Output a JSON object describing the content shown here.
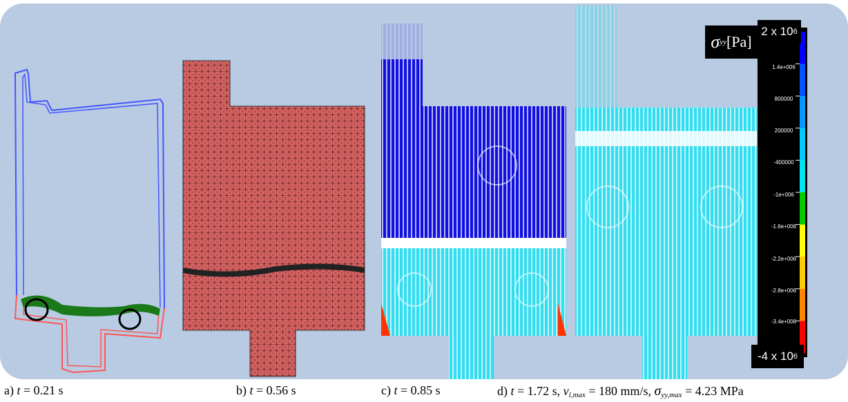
{
  "captions": {
    "a": {
      "prefix": "a) ",
      "var": "t",
      "rest": " = 0.21 s"
    },
    "b": {
      "prefix": "b) ",
      "var": "t",
      "rest": " = 0.56 s"
    },
    "c": {
      "prefix": "c) ",
      "var": "t",
      "rest": " = 0.85 s"
    },
    "d": {
      "prefix": "d) ",
      "var": "t",
      "t_rest": " = 1.72 s, ",
      "v": "v",
      "v_sub": "l,max",
      "v_rest": " = 180 mm/s, ",
      "sigma": "σ",
      "sigma_sub": "yy,max",
      "sigma_rest": " = 4.23 MPa"
    }
  },
  "colorbar": {
    "title_symbol": "σ",
    "title_sub": "yy",
    "title_unit": " [Pa]",
    "max_label": "2 x 10",
    "max_exp": "6",
    "min_label": "-4 x 10",
    "min_exp": "6",
    "ticks": [
      "1.4e+006",
      "800000",
      "200000",
      "-400000",
      "-1e+006",
      "-1.6e+006",
      "-2.2e+006",
      "-2.8e+006",
      "-3.4e+006"
    ],
    "colors": [
      "#0000ff",
      "#0055ff",
      "#0099ff",
      "#00ccff",
      "#00e5ee",
      "#00cc00",
      "#ffff00",
      "#ffcc00",
      "#ff8800",
      "#ff0000"
    ]
  },
  "palette": {
    "background": "#b8cbe2",
    "mesh": "#e06868",
    "flow_blue": "#1010e0",
    "flow_cyan": "#33ddf0",
    "outline_blue": "#4455ff",
    "outline_red": "#ff5555",
    "green": "#1a7a1a"
  }
}
